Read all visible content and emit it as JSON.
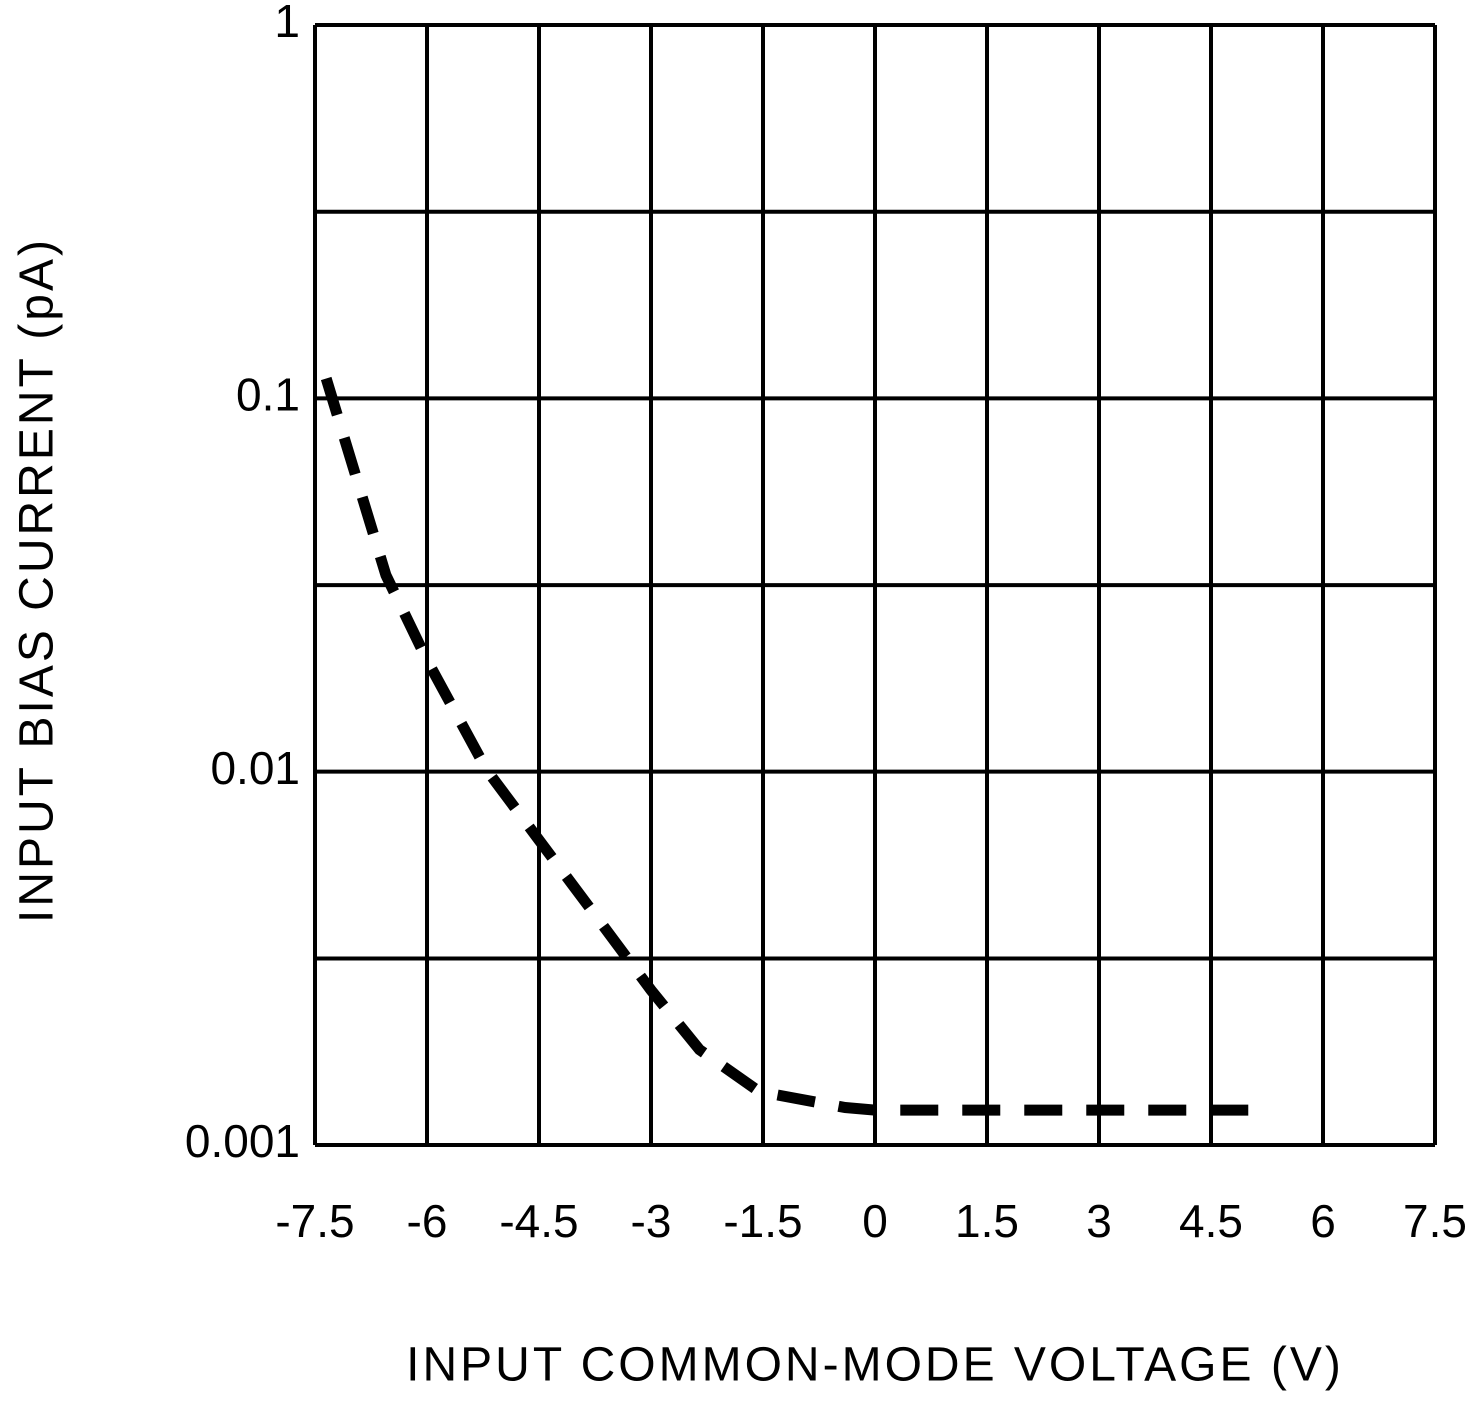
{
  "chart_data": {
    "type": "line",
    "xlabel": "INPUT COMMON-MODE VOLTAGE (V)",
    "ylabel": "INPUT BIAS CURRENT (pA)",
    "yscale": "log",
    "grid": true,
    "xlim": [
      -7.5,
      7.5
    ],
    "xticks": [
      -7.5,
      -6,
      -4.5,
      -3,
      -1.5,
      0,
      1.5,
      3,
      4.5,
      6,
      7.5
    ],
    "ylim": [
      0.001,
      1
    ],
    "yticks": [
      0.001,
      0.01,
      0.1,
      1
    ],
    "y_minor_ticks": [
      0.00316,
      0.0316,
      0.316
    ],
    "x": [
      -7.35,
      -6.55,
      -6,
      -5.2,
      -4.5,
      -3.7,
      -3,
      -2.35,
      -1.55,
      -0.4,
      0,
      5
    ],
    "series": [
      {
        "color": "#000000",
        "line_style": "dashed",
        "values": [
          0.113,
          0.0336,
          0.0199,
          0.0101,
          0.00656,
          0.00401,
          0.0026,
          0.0018,
          0.00139,
          0.00126,
          0.00124,
          0.00124
        ]
      }
    ]
  }
}
